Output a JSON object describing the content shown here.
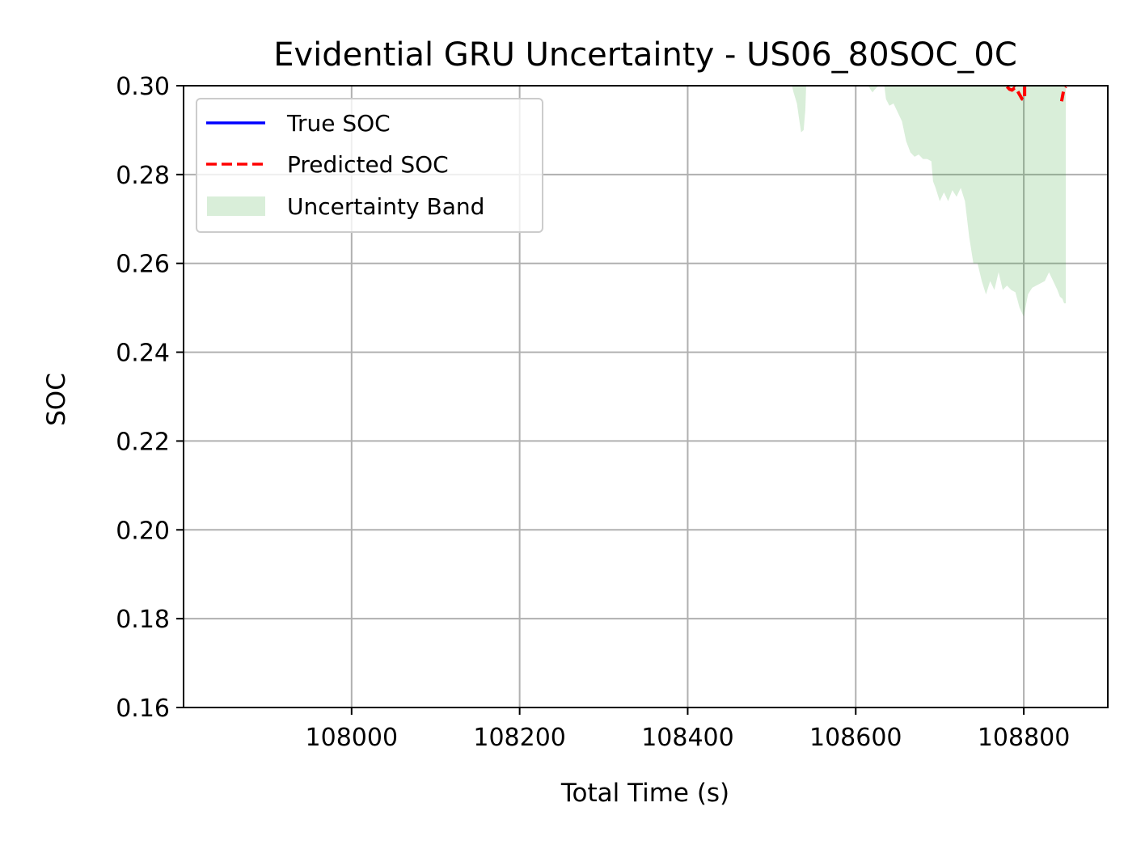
{
  "chart_data": {
    "type": "line",
    "title": "Evidential GRU Uncertainty - US06_80SOC_0C",
    "xlabel": "Total Time (s)",
    "ylabel": "SOC",
    "xlim": [
      107800,
      108900
    ],
    "ylim": [
      0.16,
      0.3
    ],
    "xticks": [
      108000,
      108200,
      108400,
      108600,
      108800
    ],
    "xtick_labels": [
      "108000",
      "108200",
      "108400",
      "108600",
      "108800"
    ],
    "yticks": [
      0.16,
      0.18,
      0.2,
      0.22,
      0.24,
      0.26,
      0.28,
      0.3
    ],
    "ytick_labels": [
      "0.16",
      "0.18",
      "0.20",
      "0.22",
      "0.24",
      "0.26",
      "0.28",
      "0.30"
    ],
    "grid": true,
    "legend_position": "upper-left",
    "legend": [
      {
        "label": "True SOC",
        "color": "#0000ff",
        "style": "solid line"
      },
      {
        "label": "Predicted SOC",
        "color": "#ff0000",
        "style": "dashed line"
      },
      {
        "label": "Uncertainty Band",
        "color": "#2ca02c",
        "style": "filled area",
        "alpha": 0.18
      }
    ],
    "series": [
      {
        "name": "Predicted SOC",
        "color": "#ff0000",
        "segments": [
          [
            [
              108780,
              0.2998
            ],
            [
              108783,
              0.2992
            ],
            [
              108786,
              0.299
            ],
            [
              108789,
              0.2995
            ],
            [
              108792,
              0.299
            ],
            [
              108795,
              0.298
            ],
            [
              108798,
              0.297
            ],
            [
              108800,
              0.2968
            ],
            [
              108801,
              0.2975
            ],
            [
              108801,
              0.299
            ],
            [
              108801,
              0.2998
            ]
          ],
          [
            [
              108845,
              0.2965
            ],
            [
              108846,
              0.2975
            ],
            [
              108847,
              0.2985
            ],
            [
              108848,
              0.2993
            ],
            [
              108850,
              0.2998
            ]
          ]
        ]
      }
    ],
    "uncertainty_band": {
      "upper": 0.3,
      "lower": [
        [
          108524,
          0.3
        ],
        [
          108526,
          0.2985
        ],
        [
          108530,
          0.296
        ],
        [
          108533,
          0.292
        ],
        [
          108535,
          0.2895
        ],
        [
          108538,
          0.29
        ],
        [
          108540,
          0.2945
        ],
        [
          108541,
          0.3
        ],
        [
          108615,
          0.3
        ],
        [
          108618,
          0.299
        ],
        [
          108620,
          0.2985
        ],
        [
          108622,
          0.299
        ],
        [
          108626,
          0.2998
        ],
        [
          108634,
          0.3
        ],
        [
          108636,
          0.297
        ],
        [
          108640,
          0.2955
        ],
        [
          108645,
          0.296
        ],
        [
          108650,
          0.294
        ],
        [
          108655,
          0.292
        ],
        [
          108660,
          0.2875
        ],
        [
          108665,
          0.285
        ],
        [
          108670,
          0.284
        ],
        [
          108675,
          0.2845
        ],
        [
          108680,
          0.2835
        ],
        [
          108685,
          0.2835
        ],
        [
          108690,
          0.283
        ],
        [
          108692,
          0.2785
        ],
        [
          108695,
          0.277
        ],
        [
          108700,
          0.274
        ],
        [
          108705,
          0.276
        ],
        [
          108710,
          0.274
        ],
        [
          108715,
          0.2765
        ],
        [
          108720,
          0.275
        ],
        [
          108725,
          0.277
        ],
        [
          108730,
          0.274
        ],
        [
          108735,
          0.266
        ],
        [
          108740,
          0.26
        ],
        [
          108745,
          0.26
        ],
        [
          108750,
          0.256
        ],
        [
          108755,
          0.253
        ],
        [
          108760,
          0.256
        ],
        [
          108765,
          0.254
        ],
        [
          108770,
          0.258
        ],
        [
          108775,
          0.254
        ],
        [
          108780,
          0.255
        ],
        [
          108785,
          0.254
        ],
        [
          108790,
          0.2535
        ],
        [
          108795,
          0.25
        ],
        [
          108800,
          0.248
        ],
        [
          108805,
          0.253
        ],
        [
          108810,
          0.2545
        ],
        [
          108815,
          0.255
        ],
        [
          108820,
          0.2555
        ],
        [
          108825,
          0.256
        ],
        [
          108830,
          0.258
        ],
        [
          108835,
          0.256
        ],
        [
          108840,
          0.254
        ],
        [
          108843,
          0.2525
        ],
        [
          108846,
          0.252
        ],
        [
          108848,
          0.251
        ],
        [
          108850,
          0.251
        ]
      ]
    }
  }
}
